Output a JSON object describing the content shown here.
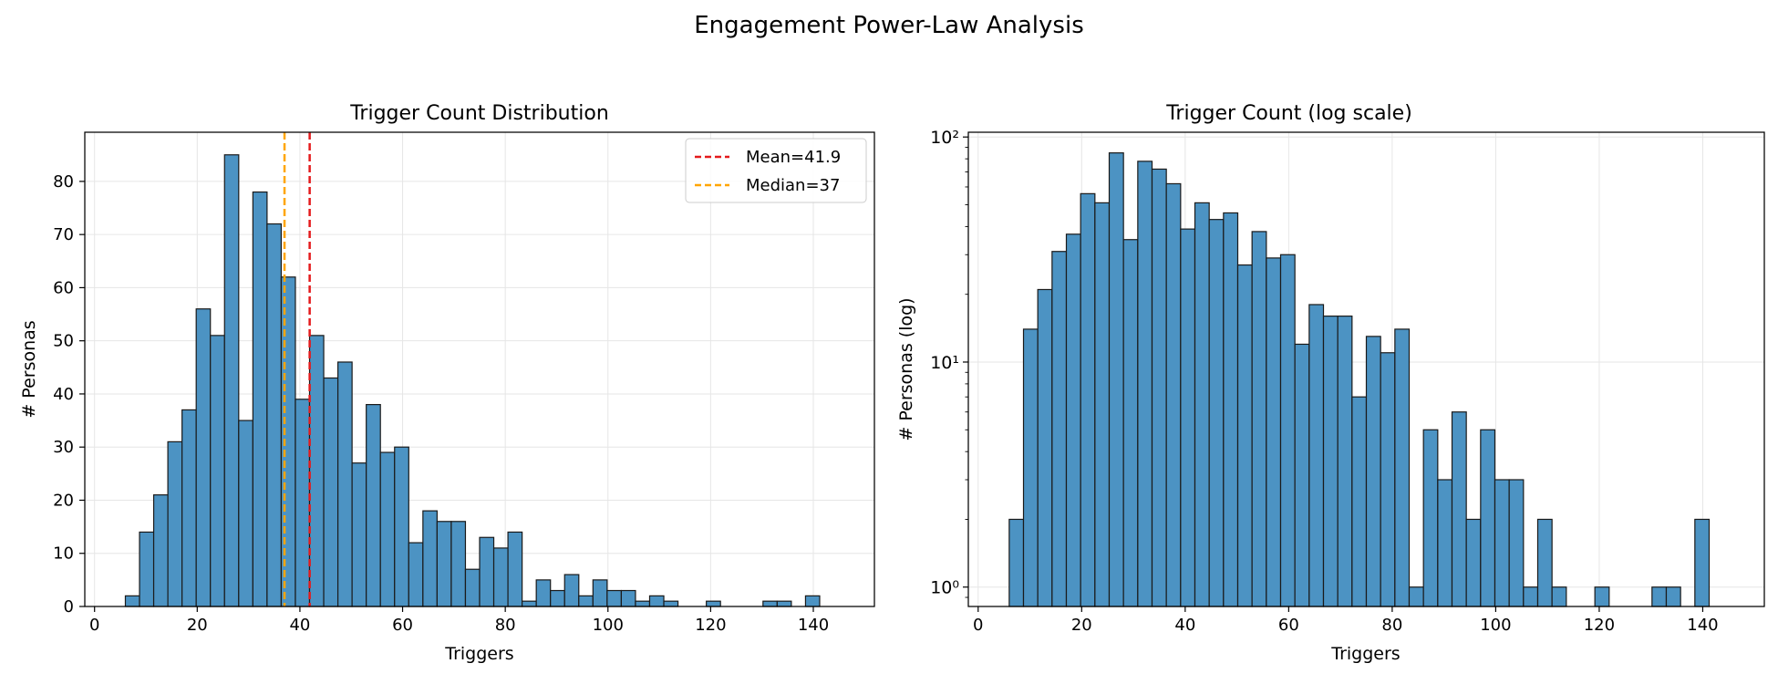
{
  "figure": {
    "title": "Engagement Power-Law Analysis"
  },
  "colors": {
    "bar_fill": "#4c93c3",
    "bar_edge": "#1a1a1a",
    "mean_line": "#e41a1c",
    "median_line": "#ffa500",
    "grid": "#e6e6e6"
  },
  "chart_data": [
    {
      "type": "bar",
      "title": "Trigger Count Distribution",
      "xlabel": "Triggers",
      "ylabel": "# Personas",
      "xlim": [
        -1.9,
        151.9
      ],
      "ylim": [
        0,
        89.25
      ],
      "xticks": [
        0,
        20,
        40,
        60,
        80,
        100,
        120,
        140
      ],
      "yticks": [
        0,
        10,
        20,
        30,
        40,
        50,
        60,
        70,
        80
      ],
      "grid": true,
      "bin_start": 6,
      "bin_width": 2.76,
      "values": [
        2,
        14,
        21,
        31,
        37,
        56,
        51,
        85,
        35,
        78,
        72,
        62,
        39,
        51,
        43,
        46,
        27,
        38,
        29,
        30,
        12,
        18,
        16,
        16,
        7,
        13,
        11,
        14,
        1,
        5,
        3,
        6,
        2,
        5,
        3,
        3,
        1,
        2,
        1,
        0,
        0,
        1,
        0,
        0,
        0,
        1,
        1,
        0,
        2
      ],
      "reference_lines": [
        {
          "name": "Mean=41.9",
          "x": 41.9,
          "color": "#e41a1c"
        },
        {
          "name": "Median=37",
          "x": 37,
          "color": "#ffa500"
        }
      ],
      "legend_position": "top-right"
    },
    {
      "type": "bar",
      "title": "Trigger Count (log scale)",
      "xlabel": "Triggers",
      "ylabel": "# Personas (log)",
      "yscale": "log",
      "xlim": [
        -1.9,
        151.9
      ],
      "ylim": [
        0.82,
        105
      ],
      "xticks": [
        0,
        20,
        40,
        60,
        80,
        100,
        120,
        140
      ],
      "ytick_labels": [
        "10⁰",
        "10¹",
        "10²"
      ],
      "grid": true,
      "bin_start": 6,
      "bin_width": 2.76,
      "values": [
        2,
        14,
        21,
        31,
        37,
        56,
        51,
        85,
        35,
        78,
        72,
        62,
        39,
        51,
        43,
        46,
        27,
        38,
        29,
        30,
        12,
        18,
        16,
        16,
        7,
        13,
        11,
        14,
        1,
        5,
        3,
        6,
        2,
        5,
        3,
        3,
        1,
        2,
        1,
        0,
        0,
        1,
        0,
        0,
        0,
        1,
        1,
        0,
        2
      ]
    }
  ]
}
